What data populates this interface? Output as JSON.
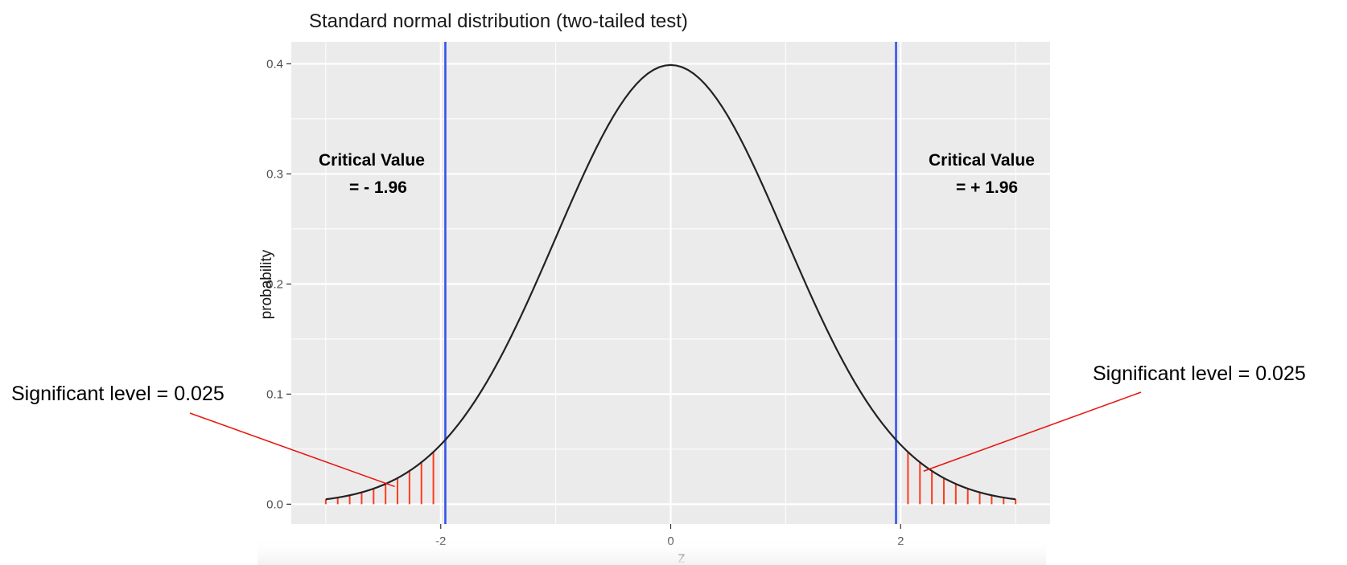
{
  "chart_data": {
    "type": "line",
    "title": "Standard normal distribution (two-tailed test)",
    "xlabel": "z",
    "ylabel": "probability",
    "xlim": [
      -3.3,
      3.3
    ],
    "ylim": [
      -0.018,
      0.42
    ],
    "x_ticks": [
      {
        "value": -2,
        "label": "-2"
      },
      {
        "value": 0,
        "label": "0"
      },
      {
        "value": 2,
        "label": "2"
      }
    ],
    "y_ticks": [
      {
        "value": 0,
        "label": "0.0"
      },
      {
        "value": 0.1,
        "label": "0.1"
      },
      {
        "value": 0.2,
        "label": "0.2"
      },
      {
        "value": 0.3,
        "label": "0.3"
      },
      {
        "value": 0.4,
        "label": "0.4"
      }
    ],
    "grid": true,
    "background": "#ebebeb",
    "curve": {
      "name": "standard normal density",
      "x_start": -3,
      "x_end": 3,
      "step": 0.05,
      "color": "#222222"
    },
    "critical_lines": [
      {
        "x": -1.96,
        "color": "#3355ee"
      },
      {
        "x": 1.96,
        "color": "#3355ee"
      }
    ],
    "tail_hatch": {
      "color": "#ff3b1f",
      "step": 0.1,
      "regions": [
        [
          -3,
          -1.96
        ],
        [
          1.96,
          3
        ]
      ]
    },
    "annotations": [
      {
        "id": "crit-left",
        "line1": "Critical Value",
        "line2": "= - 1.96"
      },
      {
        "id": "crit-right",
        "line1": "Critical Value",
        "line2": "= + 1.96"
      },
      {
        "id": "sig-left",
        "text": "Significant level = 0.025",
        "arrow_to": {
          "x": -2.4,
          "y": 0.016
        },
        "arrow_color": "#e8140c"
      },
      {
        "id": "sig-right",
        "text": "Significant level = 0.025",
        "arrow_to": {
          "x": 2.2,
          "y": 0.03
        },
        "arrow_color": "#e8140c"
      }
    ]
  }
}
